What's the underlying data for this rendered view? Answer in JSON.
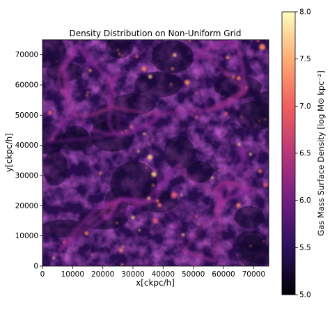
{
  "chart_data": {
    "type": "heatmap",
    "title": "Density Distribution on Non-Uniform Grid",
    "xlabel": "x[ckpc/h]",
    "ylabel": "y[ckpc/h]",
    "xlim": [
      0,
      75000
    ],
    "ylim": [
      0,
      75000
    ],
    "x_ticks": [
      0,
      10000,
      20000,
      30000,
      40000,
      50000,
      60000,
      70000
    ],
    "y_ticks": [
      0,
      10000,
      20000,
      30000,
      40000,
      50000,
      60000,
      70000
    ],
    "colorbar": {
      "label": "Gas Mass Surface Density [log M⊙ kpc⁻²]",
      "range": [
        5.0,
        8.0
      ],
      "ticks": [
        "5.0",
        "5.5",
        "6.0",
        "6.5",
        "7.0",
        "7.5",
        "8.0"
      ],
      "colormap": [
        "#000004",
        "#2c115f",
        "#721f81",
        "#b73779",
        "#f1605d",
        "#feb078",
        "#fcfdbf"
      ]
    },
    "grid": false,
    "legend": "none"
  }
}
